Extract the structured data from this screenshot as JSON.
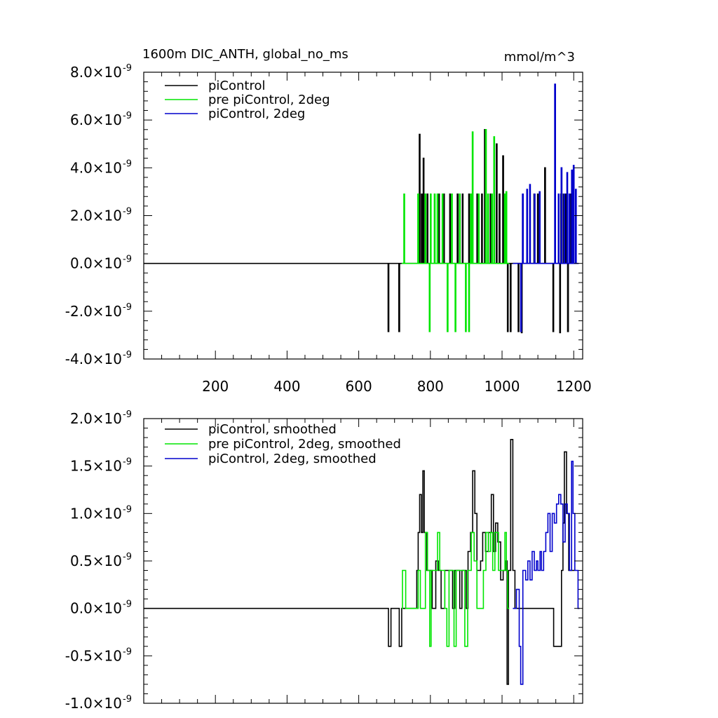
{
  "figure": {
    "title": "1600m DIC_ANTH, global_no_ms",
    "units": "mmol/m^3"
  },
  "chart_data": [
    {
      "type": "line",
      "panel": "top",
      "title": "1600m DIC_ANTH, global_no_ms",
      "units_label": "mmol/m^3",
      "xlabel": "",
      "ylabel": "",
      "xlim": [
        0,
        1225
      ],
      "ylim": [
        -4e-09,
        8e-09
      ],
      "xticks": [
        200,
        400,
        600,
        800,
        1000,
        1200
      ],
      "xtick_labels": [
        "200",
        "400",
        "600",
        "800",
        "1000",
        "1200"
      ],
      "yticks": [
        -4e-09,
        -2e-09,
        0.0,
        2e-09,
        4e-09,
        6e-09,
        8e-09
      ],
      "ytick_mantissas": [
        "-4.0",
        "-2.0",
        "0.0",
        "2.0",
        "4.0",
        "6.0",
        "8.0"
      ],
      "ytick_exponent": "-9",
      "legend_position": "top-left",
      "series": [
        {
          "name": "piControl",
          "color": "#000000",
          "baseline_from": 0,
          "spikes": [
            [
              683,
              -2.85e-09
            ],
            [
              713,
              -2.85e-09
            ],
            [
              770,
              5.4e-09
            ],
            [
              776,
              2.9e-09
            ],
            [
              781,
              4.4e-09
            ],
            [
              792,
              2.9e-09
            ],
            [
              824,
              2.9e-09
            ],
            [
              838,
              2.9e-09
            ],
            [
              855,
              2.9e-09
            ],
            [
              876,
              2.9e-09
            ],
            [
              890,
              2.9e-09
            ],
            [
              908,
              2.9e-09
            ],
            [
              931,
              2.9e-09
            ],
            [
              944,
              2.9e-09
            ],
            [
              952,
              5.6e-09
            ],
            [
              968,
              2.9e-09
            ],
            [
              985,
              5e-09
            ],
            [
              993,
              2.9e-09
            ],
            [
              1003,
              4.5e-09
            ],
            [
              1016,
              -2.85e-09
            ],
            [
              1024,
              -2.85e-09
            ],
            [
              1046,
              -2.85e-09
            ],
            [
              1055,
              -2.9e-09
            ],
            [
              1090,
              2.9e-09
            ],
            [
              1100,
              2.9e-09
            ],
            [
              1120,
              4e-09
            ],
            [
              1143,
              -2.85e-09
            ],
            [
              1162,
              -2.9e-09
            ],
            [
              1165,
              2.9e-09
            ],
            [
              1172,
              2.9e-09
            ],
            [
              1178,
              2.9e-09
            ],
            [
              1184,
              -2.85e-09
            ],
            [
              1193,
              2.9e-09
            ]
          ]
        },
        {
          "name": "pre piControl, 2deg",
          "color": "#00e600",
          "baseline_from": 720,
          "spikes": [
            [
              727,
              2.9e-09
            ],
            [
              766,
              2.9e-09
            ],
            [
              786,
              2.9e-09
            ],
            [
              798,
              -2.85e-09
            ],
            [
              801,
              2.9e-09
            ],
            [
              812,
              2.9e-09
            ],
            [
              820,
              2.9e-09
            ],
            [
              834,
              2.9e-09
            ],
            [
              848,
              -2.85e-09
            ],
            [
              860,
              2.9e-09
            ],
            [
              870,
              -2.85e-09
            ],
            [
              882,
              2.9e-09
            ],
            [
              899,
              -2.85e-09
            ],
            [
              908,
              -2.85e-09
            ],
            [
              913,
              2.9e-09
            ],
            [
              918,
              5.5e-09
            ],
            [
              935,
              2.9e-09
            ],
            [
              955,
              5.6e-09
            ],
            [
              961,
              2.9e-09
            ],
            [
              972,
              2.9e-09
            ],
            [
              978,
              5.3e-09
            ],
            [
              1008,
              2.9e-09
            ],
            [
              1012,
              3e-09
            ]
          ]
        },
        {
          "name": "piControl, 2deg",
          "color": "#0000cc",
          "baseline_from": 1030,
          "spikes": [
            [
              1053,
              -2.85e-09
            ],
            [
              1058,
              2.9e-09
            ],
            [
              1070,
              3.1e-09
            ],
            [
              1078,
              3.3e-09
            ],
            [
              1091,
              2.9e-09
            ],
            [
              1105,
              3e-09
            ],
            [
              1148,
              7.5e-09
            ],
            [
              1158,
              2.9e-09
            ],
            [
              1166,
              4e-09
            ],
            [
              1174,
              2.9e-09
            ],
            [
              1182,
              3.8e-09
            ],
            [
              1188,
              2.9e-09
            ],
            [
              1195,
              3.9e-09
            ],
            [
              1200,
              4.1e-09
            ],
            [
              1206,
              3.1e-09
            ]
          ]
        }
      ]
    },
    {
      "type": "line",
      "panel": "bottom",
      "title": "",
      "xlabel": "",
      "ylabel": "",
      "xlim": [
        0,
        1225
      ],
      "ylim": [
        -1e-09,
        2e-09
      ],
      "xticks": [
        200,
        400,
        600,
        800,
        1000,
        1200
      ],
      "yticks": [
        -1e-09,
        -5e-10,
        0.0,
        5e-10,
        1e-09,
        1.5e-09,
        2e-09
      ],
      "ytick_mantissas": [
        "-1.0",
        "-0.5",
        "0.0",
        "0.5",
        "1.0",
        "1.5",
        "2.0"
      ],
      "ytick_exponent": "-9",
      "legend_position": "top-left",
      "series": [
        {
          "name": "piControl, smoothed",
          "color": "#000000",
          "baseline_from": 0,
          "steps": [
            [
              680,
              0
            ],
            [
              683,
              -4e-10
            ],
            [
              690,
              0
            ],
            [
              710,
              0
            ],
            [
              713,
              -4e-10
            ],
            [
              720,
              0
            ],
            [
              760,
              0
            ],
            [
              762,
              4e-10
            ],
            [
              766,
              8e-10
            ],
            [
              770,
              1.2e-09
            ],
            [
              775,
              8e-10
            ],
            [
              779,
              1.45e-09
            ],
            [
              783,
              8e-10
            ],
            [
              790,
              4e-10
            ],
            [
              800,
              4e-10
            ],
            [
              805,
              0
            ],
            [
              815,
              5e-10
            ],
            [
              822,
              4e-10
            ],
            [
              830,
              0
            ],
            [
              840,
              4e-10
            ],
            [
              856,
              4e-10
            ],
            [
              862,
              0
            ],
            [
              868,
              4e-10
            ],
            [
              876,
              4e-10
            ],
            [
              882,
              0
            ],
            [
              888,
              4e-10
            ],
            [
              896,
              4e-10
            ],
            [
              900,
              0
            ],
            [
              905,
              6e-10
            ],
            [
              912,
              8e-10
            ],
            [
              918,
              1.45e-09
            ],
            [
              924,
              1e-09
            ],
            [
              930,
              4e-10
            ],
            [
              940,
              5e-10
            ],
            [
              946,
              8e-10
            ],
            [
              954,
              6e-10
            ],
            [
              962,
              8e-10
            ],
            [
              970,
              1.2e-09
            ],
            [
              976,
              6e-10
            ],
            [
              982,
              9e-10
            ],
            [
              988,
              7e-10
            ],
            [
              996,
              3e-10
            ],
            [
              1003,
              4e-10
            ],
            [
              1010,
              5e-10
            ],
            [
              1014,
              -8e-10
            ],
            [
              1018,
              4e-10
            ],
            [
              1024,
              1.78e-09
            ],
            [
              1030,
              4e-10
            ],
            [
              1036,
              0
            ],
            [
              1140,
              0
            ],
            [
              1144,
              -4e-10
            ],
            [
              1158,
              -4e-10
            ],
            [
              1162,
              -4e-10
            ],
            [
              1166,
              4e-10
            ],
            [
              1170,
              9e-10
            ],
            [
              1174,
              1.65e-09
            ],
            [
              1180,
              1e-09
            ],
            [
              1186,
              4e-10
            ],
            [
              1192,
              4e-10
            ],
            [
              1198,
              4e-10
            ]
          ]
        },
        {
          "name": "pre piControl, 2deg, smoothed",
          "color": "#00e600",
          "baseline_from": 720,
          "steps": [
            [
              722,
              4e-10
            ],
            [
              731,
              0
            ],
            [
              766,
              4e-10
            ],
            [
              772,
              0
            ],
            [
              786,
              8e-10
            ],
            [
              792,
              4e-10
            ],
            [
              798,
              -4e-10
            ],
            [
              802,
              4e-10
            ],
            [
              810,
              4e-10
            ],
            [
              816,
              4e-10
            ],
            [
              820,
              8e-10
            ],
            [
              826,
              4e-10
            ],
            [
              834,
              4e-10
            ],
            [
              840,
              0
            ],
            [
              846,
              -4e-10
            ],
            [
              852,
              4e-10
            ],
            [
              860,
              4e-10
            ],
            [
              866,
              -4e-10
            ],
            [
              872,
              4e-10
            ],
            [
              880,
              4e-10
            ],
            [
              890,
              4e-10
            ],
            [
              896,
              -4e-10
            ],
            [
              904,
              4e-10
            ],
            [
              910,
              4e-10
            ],
            [
              914,
              8e-10
            ],
            [
              922,
              5e-10
            ],
            [
              930,
              0
            ],
            [
              948,
              4e-10
            ],
            [
              955,
              8e-10
            ],
            [
              962,
              6e-10
            ],
            [
              968,
              8e-10
            ],
            [
              974,
              4e-10
            ],
            [
              980,
              8e-10
            ],
            [
              990,
              4e-10
            ],
            [
              1000,
              4e-10
            ],
            [
              1008,
              8e-10
            ],
            [
              1012,
              4e-10
            ],
            [
              1016,
              0
            ]
          ]
        },
        {
          "name": "piControl, 2deg, smoothed",
          "color": "#0000cc",
          "baseline_from": 1030,
          "steps": [
            [
              1040,
              2e-10
            ],
            [
              1048,
              -4e-10
            ],
            [
              1052,
              -8e-10
            ],
            [
              1058,
              4e-10
            ],
            [
              1066,
              3e-10
            ],
            [
              1072,
              5e-10
            ],
            [
              1078,
              3e-10
            ],
            [
              1084,
              6e-10
            ],
            [
              1090,
              4e-10
            ],
            [
              1096,
              5e-10
            ],
            [
              1100,
              4e-10
            ],
            [
              1106,
              6e-10
            ],
            [
              1110,
              4e-10
            ],
            [
              1116,
              6e-10
            ],
            [
              1122,
              8e-10
            ],
            [
              1128,
              1e-09
            ],
            [
              1134,
              6e-10
            ],
            [
              1140,
              1e-09
            ],
            [
              1146,
              9e-10
            ],
            [
              1152,
              1.1e-09
            ],
            [
              1158,
              1.2e-09
            ],
            [
              1164,
              1.1e-09
            ],
            [
              1170,
              7e-10
            ],
            [
              1176,
              1.1e-09
            ],
            [
              1182,
              1e-09
            ],
            [
              1188,
              4e-10
            ],
            [
              1194,
              1.55e-09
            ],
            [
              1198,
              1e-09
            ],
            [
              1203,
              4e-10
            ],
            [
              1208,
              4e-10
            ],
            [
              1212,
              0
            ]
          ]
        }
      ]
    }
  ]
}
